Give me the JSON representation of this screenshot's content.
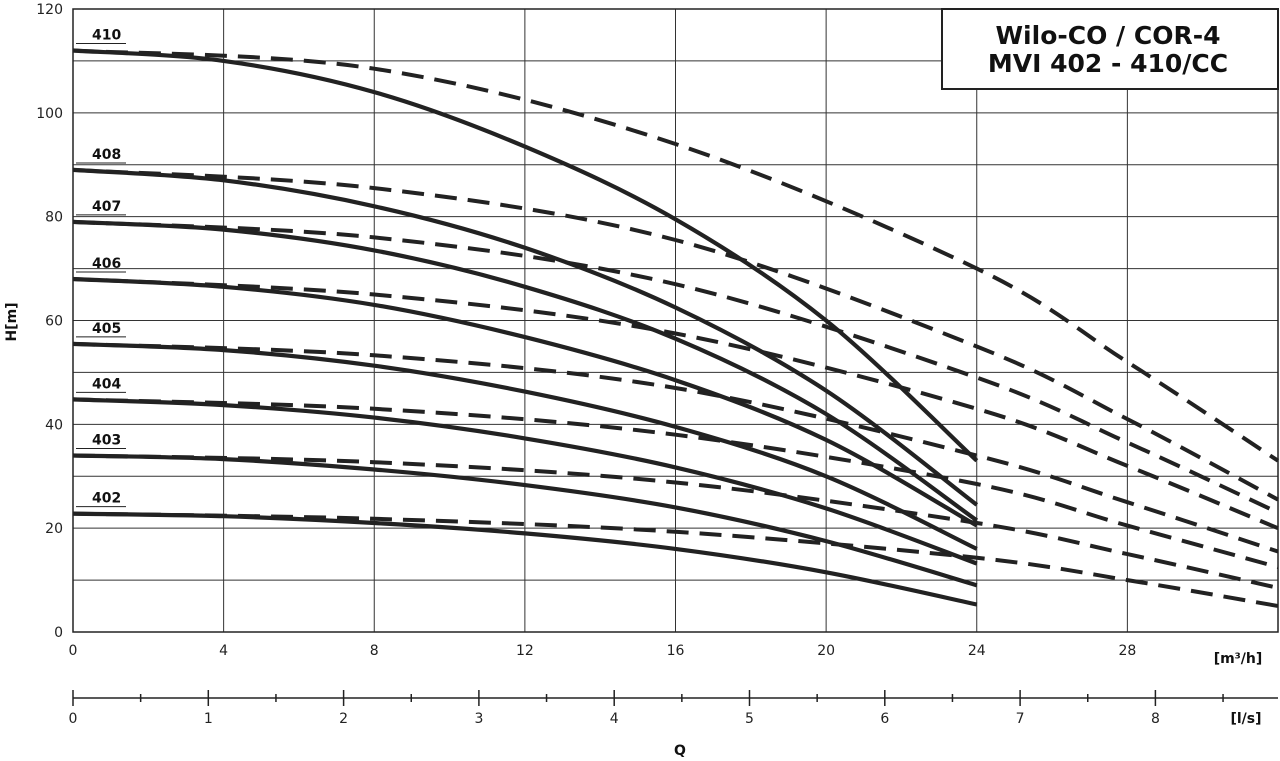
{
  "chart_data": {
    "type": "line",
    "title": [
      "Wilo-CO / COR-4",
      "MVI 402 - 410/CC"
    ],
    "ylabel": "H[m]",
    "xlabel": "Q",
    "x_unit": "[m³/h]",
    "x2_unit": "[l/s]",
    "xlim": [
      0,
      32
    ],
    "ylim": [
      0,
      120
    ],
    "x_ticks": [
      0,
      4,
      8,
      12,
      16,
      20,
      24,
      28
    ],
    "y_ticks": [
      0,
      20,
      40,
      60,
      80,
      100,
      120
    ],
    "x2_ticks": [
      0,
      1,
      2,
      3,
      4,
      5,
      6,
      7,
      8
    ],
    "grid": true,
    "series": [
      {
        "name": "402",
        "solid": [
          [
            0,
            22.8
          ],
          [
            4,
            22.3
          ],
          [
            8,
            21.0
          ],
          [
            12,
            19.0
          ],
          [
            16,
            16.0
          ],
          [
            20,
            11.5
          ],
          [
            24,
            5.3
          ]
        ],
        "dashed": [
          [
            0,
            22.8
          ],
          [
            8,
            21.8
          ],
          [
            16,
            19.3
          ],
          [
            24,
            14.3
          ],
          [
            28,
            10.0
          ],
          [
            32,
            5.0
          ]
        ]
      },
      {
        "name": "403",
        "solid": [
          [
            0,
            34.0
          ],
          [
            4,
            33.3
          ],
          [
            8,
            31.3
          ],
          [
            12,
            28.3
          ],
          [
            16,
            24.0
          ],
          [
            20,
            17.5
          ],
          [
            24,
            9.0
          ]
        ],
        "dashed": [
          [
            0,
            34.0
          ],
          [
            8,
            32.7
          ],
          [
            16,
            28.8
          ],
          [
            24,
            21.0
          ],
          [
            28,
            15.0
          ],
          [
            32,
            8.5
          ]
        ]
      },
      {
        "name": "404",
        "solid": [
          [
            0,
            44.8
          ],
          [
            4,
            43.7
          ],
          [
            8,
            41.3
          ],
          [
            12,
            37.3
          ],
          [
            16,
            31.7
          ],
          [
            20,
            23.8
          ],
          [
            24,
            13.2
          ]
        ],
        "dashed": [
          [
            0,
            44.8
          ],
          [
            8,
            43.0
          ],
          [
            16,
            38.0
          ],
          [
            24,
            28.5
          ],
          [
            28,
            20.5
          ],
          [
            32,
            12.5
          ]
        ]
      },
      {
        "name": "405",
        "solid": [
          [
            0,
            55.5
          ],
          [
            4,
            54.3
          ],
          [
            8,
            51.3
          ],
          [
            12,
            46.3
          ],
          [
            16,
            39.5
          ],
          [
            20,
            30.0
          ],
          [
            24,
            16.0
          ]
        ],
        "dashed": [
          [
            0,
            55.5
          ],
          [
            8,
            53.3
          ],
          [
            16,
            47.0
          ],
          [
            24,
            34.0
          ],
          [
            28,
            25.0
          ],
          [
            32,
            15.5
          ]
        ]
      },
      {
        "name": "406",
        "solid": [
          [
            0,
            68.0
          ],
          [
            4,
            66.5
          ],
          [
            8,
            63.0
          ],
          [
            12,
            56.8
          ],
          [
            16,
            48.5
          ],
          [
            20,
            37.0
          ],
          [
            24,
            20.5
          ]
        ],
        "dashed": [
          [
            0,
            68.0
          ],
          [
            8,
            65.0
          ],
          [
            16,
            57.5
          ],
          [
            24,
            43.0
          ],
          [
            28,
            32.0
          ],
          [
            32,
            20.0
          ]
        ]
      },
      {
        "name": "407",
        "solid": [
          [
            0,
            79.0
          ],
          [
            4,
            77.5
          ],
          [
            8,
            73.5
          ],
          [
            12,
            66.5
          ],
          [
            16,
            56.5
          ],
          [
            20,
            42.0
          ],
          [
            24,
            21.5
          ]
        ],
        "dashed": [
          [
            0,
            79.0
          ],
          [
            8,
            76.0
          ],
          [
            16,
            67.0
          ],
          [
            24,
            49.0
          ],
          [
            28,
            36.5
          ],
          [
            32,
            23.0
          ]
        ]
      },
      {
        "name": "408",
        "solid": [
          [
            0,
            89.0
          ],
          [
            4,
            87.0
          ],
          [
            8,
            82.0
          ],
          [
            12,
            74.0
          ],
          [
            16,
            62.5
          ],
          [
            20,
            46.5
          ],
          [
            24,
            24.5
          ]
        ],
        "dashed": [
          [
            0,
            89.0
          ],
          [
            8,
            85.5
          ],
          [
            16,
            75.5
          ],
          [
            24,
            55.0
          ],
          [
            28,
            41.0
          ],
          [
            32,
            25.5
          ]
        ]
      },
      {
        "name": "410",
        "solid": [
          [
            0,
            112.0
          ],
          [
            4,
            110.0
          ],
          [
            8,
            104.0
          ],
          [
            12,
            93.5
          ],
          [
            16,
            79.5
          ],
          [
            20,
            60.0
          ],
          [
            24,
            33.0
          ]
        ],
        "dashed": [
          [
            0,
            112.0
          ],
          [
            8,
            108.5
          ],
          [
            16,
            94.0
          ],
          [
            24,
            70.0
          ],
          [
            28,
            52.0
          ],
          [
            32,
            33.0
          ]
        ]
      }
    ]
  }
}
